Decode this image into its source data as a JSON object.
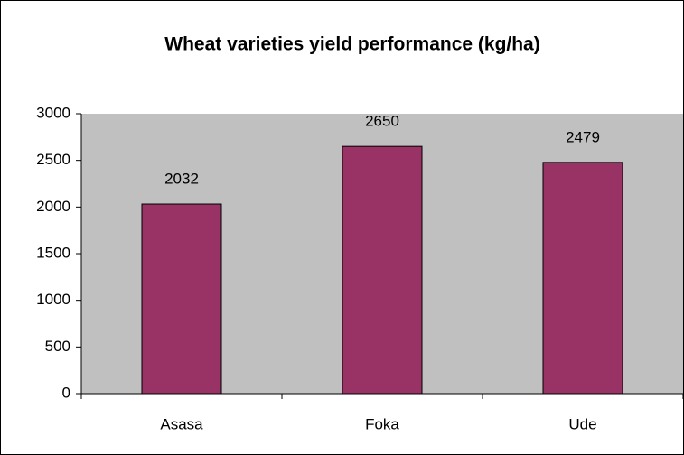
{
  "chart_data": {
    "type": "bar",
    "title": "Wheat varieties yield performance (kg/ha)",
    "categories": [
      "Asasa",
      "Foka",
      "Ude"
    ],
    "values": [
      2032,
      2650,
      2479
    ],
    "color": "#993366",
    "ylim": [
      0,
      3000
    ],
    "yticks": [
      0,
      500,
      1000,
      1500,
      2000,
      2500,
      3000
    ],
    "grid": false
  }
}
